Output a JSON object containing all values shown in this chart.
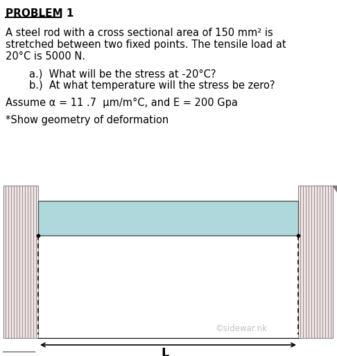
{
  "title": "PROBLEM 1",
  "line1": "A steel rod with a cross sectional area of 150 mm² is",
  "line2": "stretched between two fixed points. The tensile load at",
  "line3": "20°C is 5000 N.",
  "line4a": "a.)  What will be the stress at -20°C?",
  "line4b": "b.)  At what temperature will the stress be zero?",
  "line5": "Assume α = 11 .7  μm/m°C, and E = 200 Gpa",
  "line6": "*Show geometry of deformation",
  "watermark": "©sidewar.nk",
  "label_L": "L",
  "bg_color": "#ffffff",
  "rod_fill": "#aed8dc",
  "rod_border": "#555555",
  "wall_hatch_color": "#b08080",
  "wall_border": "#888888",
  "wall_bg": "#e8e8e8"
}
